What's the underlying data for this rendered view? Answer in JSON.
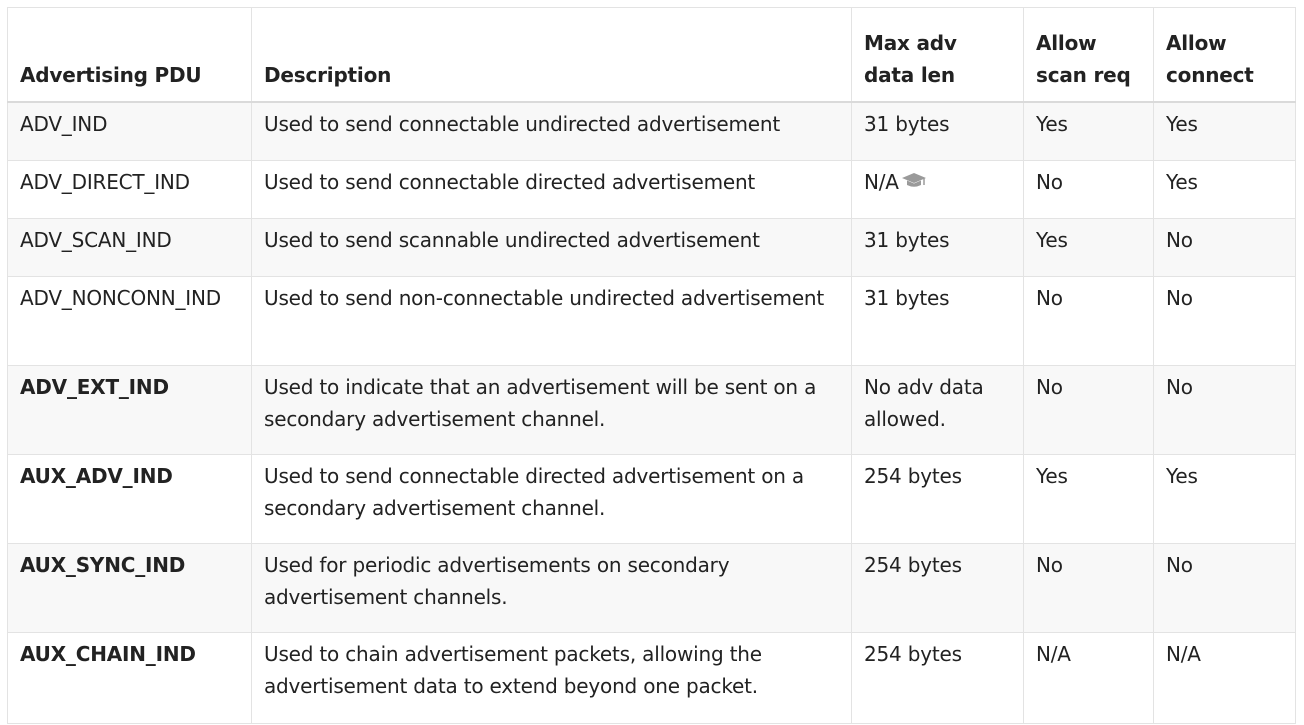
{
  "table": {
    "headers": [
      "Advertising PDU",
      "Description",
      "Max adv data len",
      "Allow scan req",
      "Allow connect"
    ],
    "rows": [
      {
        "pdu": "ADV_IND",
        "desc": "Used to send connectable undirected advertisement",
        "maxlen": "31 bytes",
        "scan": "Yes",
        "connect": "Yes"
      },
      {
        "pdu": "ADV_DIRECT_IND",
        "desc": "Used to send connectable directed advertisement",
        "maxlen": "N/A",
        "scan": "No",
        "connect": "Yes"
      },
      {
        "pdu": "ADV_SCAN_IND",
        "desc": "Used to send scannable undirected advertisement",
        "maxlen": "31 bytes",
        "scan": "Yes",
        "connect": "No"
      },
      {
        "pdu": "ADV_NONCONN_IND",
        "desc": "Used to send non-connectable undirected advertisement",
        "maxlen": "31 bytes",
        "scan": "No",
        "connect": "No"
      },
      {
        "pdu": "ADV_EXT_IND",
        "desc": "Used to indicate that an advertisement will be sent on a secondary advertisement channel.",
        "maxlen": "No adv data allowed.",
        "scan": "No",
        "connect": "No"
      },
      {
        "pdu": "AUX_ADV_IND",
        "desc": "Used to send connectable directed advertisement on a secondary advertisement channel.",
        "maxlen": "254 bytes",
        "scan": "Yes",
        "connect": "Yes"
      },
      {
        "pdu": "AUX_SYNC_IND",
        "desc": "Used for periodic advertisements on secondary advertisement channels.",
        "maxlen": "254 bytes",
        "scan": "No",
        "connect": "No"
      },
      {
        "pdu": "AUX_CHAIN_IND",
        "desc": "Used to chain advertisement packets, allowing the advertisement data to extend beyond one packet.",
        "maxlen": "254 bytes",
        "scan": "N/A",
        "connect": "N/A"
      }
    ]
  },
  "icons": {
    "na_tooltip_icon": "graduation-cap-icon"
  },
  "colors": {
    "border": "#e3e3e3",
    "stripe": "#f8f8f8",
    "text": "#222222",
    "icon": "#9a9a9a"
  }
}
